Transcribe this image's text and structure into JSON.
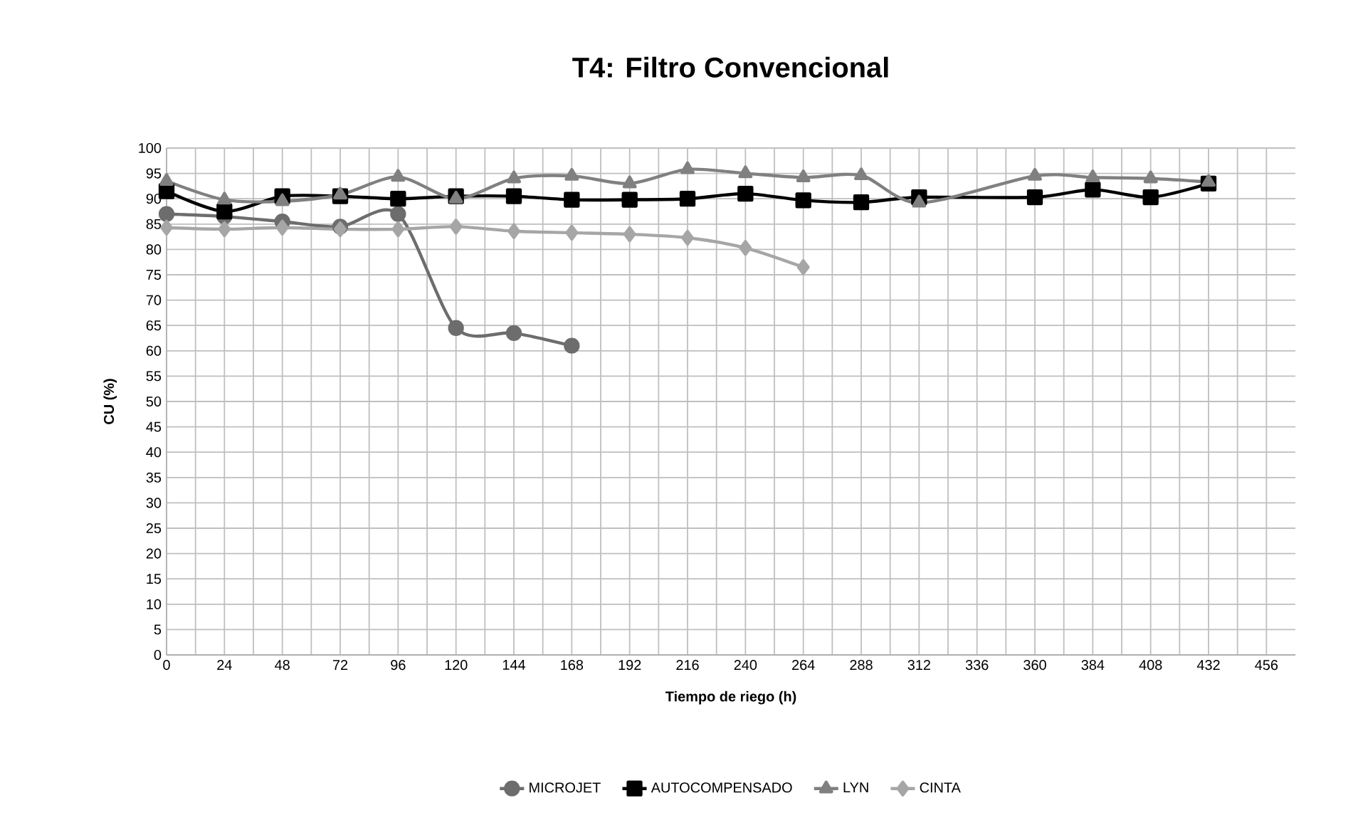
{
  "chart_data": {
    "type": "line",
    "title": "T4: Filtro Convencional",
    "xlabel": "Tiempo de riego (h)",
    "ylabel": "CU (%)",
    "xlim": [
      0,
      468
    ],
    "ylim": [
      0,
      100
    ],
    "xticks": [
      0,
      24,
      48,
      72,
      96,
      120,
      144,
      168,
      192,
      216,
      240,
      264,
      288,
      312,
      336,
      360,
      384,
      408,
      432,
      456
    ],
    "yticks": [
      0,
      5,
      10,
      15,
      20,
      25,
      30,
      35,
      40,
      45,
      50,
      55,
      60,
      65,
      70,
      75,
      80,
      85,
      90,
      95,
      100
    ],
    "grid": true,
    "legend": "bottom",
    "line_style": "solid",
    "series": [
      {
        "name": "MICROJET",
        "color": "#6d6d6d",
        "marker": "circle",
        "x": [
          0,
          24,
          48,
          72,
          96,
          120,
          144,
          168
        ],
        "values": [
          87,
          86.5,
          85.5,
          84.5,
          87,
          64.5,
          63.5,
          61
        ]
      },
      {
        "name": "AUTOCOMPENSADO",
        "color": "#000000",
        "marker": "square",
        "x": [
          0,
          24,
          48,
          72,
          96,
          120,
          144,
          168,
          192,
          216,
          240,
          264,
          288,
          312,
          360,
          384,
          408,
          432
        ],
        "values": [
          91.5,
          87.5,
          90.5,
          90.5,
          90,
          90.5,
          90.5,
          89.8,
          89.8,
          90,
          91,
          89.7,
          89.3,
          90.3,
          90.3,
          91.8,
          90.3,
          93
        ]
      },
      {
        "name": "LYN",
        "color": "#808080",
        "marker": "triangle",
        "x": [
          0,
          24,
          48,
          72,
          96,
          120,
          144,
          168,
          192,
          216,
          240,
          264,
          288,
          312,
          360,
          384,
          408,
          432
        ],
        "values": [
          93.5,
          89.8,
          89.5,
          90.8,
          94.3,
          90,
          94,
          94.5,
          93,
          95.8,
          95,
          94.2,
          94.6,
          89.2,
          94.5,
          94.2,
          94,
          93.3
        ]
      },
      {
        "name": "CINTA",
        "color": "#a6a6a6",
        "marker": "diamond",
        "x": [
          0,
          24,
          48,
          72,
          96,
          120,
          144,
          168,
          192,
          216,
          240,
          264
        ],
        "values": [
          84.3,
          84,
          84.3,
          84,
          84,
          84.5,
          83.6,
          83.3,
          83,
          82.3,
          80.3,
          76.5
        ]
      }
    ]
  }
}
